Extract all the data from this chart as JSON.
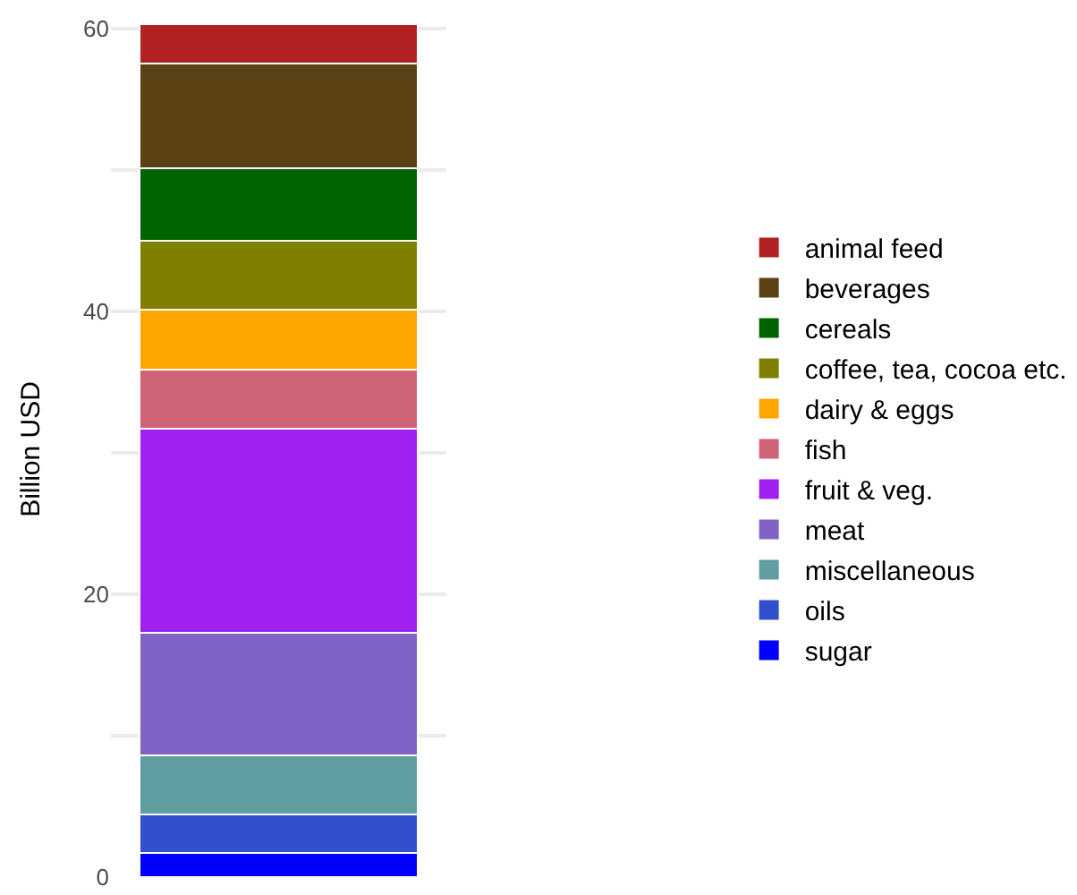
{
  "chart_data": {
    "type": "bar",
    "stacked": true,
    "ylabel": "Billion USD",
    "categories": [
      null
    ],
    "series": [
      {
        "name": "sugar",
        "color": "#0000ff",
        "values": [
          1.7
        ]
      },
      {
        "name": "oils",
        "color": "#3050cc",
        "values": [
          2.7
        ]
      },
      {
        "name": "miscellaneous",
        "color": "#5f9ea0",
        "values": [
          4.2
        ]
      },
      {
        "name": "meat",
        "color": "#8063c4",
        "values": [
          8.7
        ]
      },
      {
        "name": "fruit & veg.",
        "color": "#a020f0",
        "values": [
          14.4
        ]
      },
      {
        "name": "fish",
        "color": "#cd6374",
        "values": [
          4.2
        ]
      },
      {
        "name": "dairy & eggs",
        "color": "#ffa500",
        "values": [
          4.2
        ]
      },
      {
        "name": "coffee, tea, cocoa etc.",
        "color": "#808000",
        "values": [
          4.9
        ]
      },
      {
        "name": "cereals",
        "color": "#006400",
        "values": [
          5.1
        ]
      },
      {
        "name": "beverages",
        "color": "#5a4214",
        "values": [
          7.4
        ]
      },
      {
        "name": "animal feed",
        "color": "#b22222",
        "values": [
          2.8
        ]
      }
    ],
    "ylim": [
      0,
      60.5
    ],
    "yticks": [
      0,
      {
        "value": 10,
        "label": null
      },
      20,
      {
        "value": 30,
        "label": null
      },
      40,
      {
        "value": 50,
        "label": null
      },
      60
    ],
    "grid": "y",
    "legend": "right"
  }
}
